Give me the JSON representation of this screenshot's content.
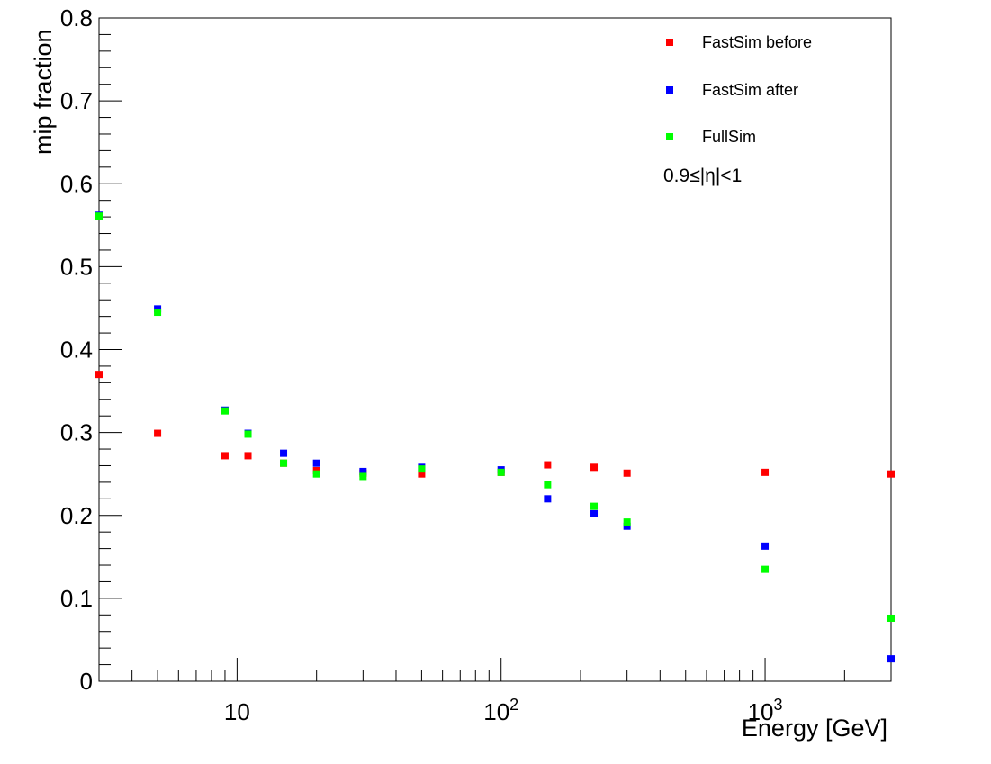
{
  "chart_data": {
    "type": "scatter",
    "title": "",
    "xlabel": "Energy [GeV]",
    "ylabel": "mip fraction",
    "xscale": "log",
    "xlim": [
      3,
      3000
    ],
    "ylim": [
      0,
      0.8
    ],
    "grid": false,
    "legend_placement": "top-right",
    "annotation": "0.9≤|η|<1",
    "x_tick_labels": [
      {
        "value": 10,
        "base": "10",
        "exp": ""
      },
      {
        "value": 100,
        "base": "10",
        "exp": "2"
      },
      {
        "value": 1000,
        "base": "10",
        "exp": "3"
      }
    ],
    "y_tick_labels": [
      "0",
      "0.1",
      "0.2",
      "0.3",
      "0.4",
      "0.5",
      "0.6",
      "0.7",
      "0.8"
    ],
    "y_tick_values": [
      0,
      0.1,
      0.2,
      0.3,
      0.4,
      0.5,
      0.6,
      0.7,
      0.8
    ],
    "series": [
      {
        "name": "FastSim before",
        "color": "#ff0000",
        "points": [
          [
            3,
            0.37
          ],
          [
            5,
            0.299
          ],
          [
            9,
            0.272
          ],
          [
            11,
            0.272
          ],
          [
            15,
            0.263
          ],
          [
            20,
            0.254
          ],
          [
            30,
            0.251
          ],
          [
            50,
            0.25
          ],
          [
            100,
            0.252
          ],
          [
            150,
            0.261
          ],
          [
            225,
            0.258
          ],
          [
            300,
            0.251
          ],
          [
            1000,
            0.252
          ],
          [
            3000,
            0.25
          ]
        ]
      },
      {
        "name": "FastSim after",
        "color": "#0000ff",
        "points": [
          [
            3,
            0.562
          ],
          [
            5,
            0.449
          ],
          [
            9,
            0.327
          ],
          [
            11,
            0.299
          ],
          [
            15,
            0.275
          ],
          [
            20,
            0.263
          ],
          [
            30,
            0.253
          ],
          [
            50,
            0.258
          ],
          [
            100,
            0.255
          ],
          [
            150,
            0.22
          ],
          [
            225,
            0.202
          ],
          [
            300,
            0.187
          ],
          [
            1000,
            0.163
          ],
          [
            3000,
            0.027
          ]
        ]
      },
      {
        "name": "FullSim",
        "color": "#00ff00",
        "points": [
          [
            3,
            0.561
          ],
          [
            5,
            0.445
          ],
          [
            9,
            0.326
          ],
          [
            11,
            0.298
          ],
          [
            15,
            0.263
          ],
          [
            20,
            0.25
          ],
          [
            30,
            0.247
          ],
          [
            50,
            0.256
          ],
          [
            100,
            0.252
          ],
          [
            150,
            0.237
          ],
          [
            225,
            0.211
          ],
          [
            300,
            0.192
          ],
          [
            1000,
            0.135
          ],
          [
            3000,
            0.076
          ]
        ]
      }
    ]
  }
}
